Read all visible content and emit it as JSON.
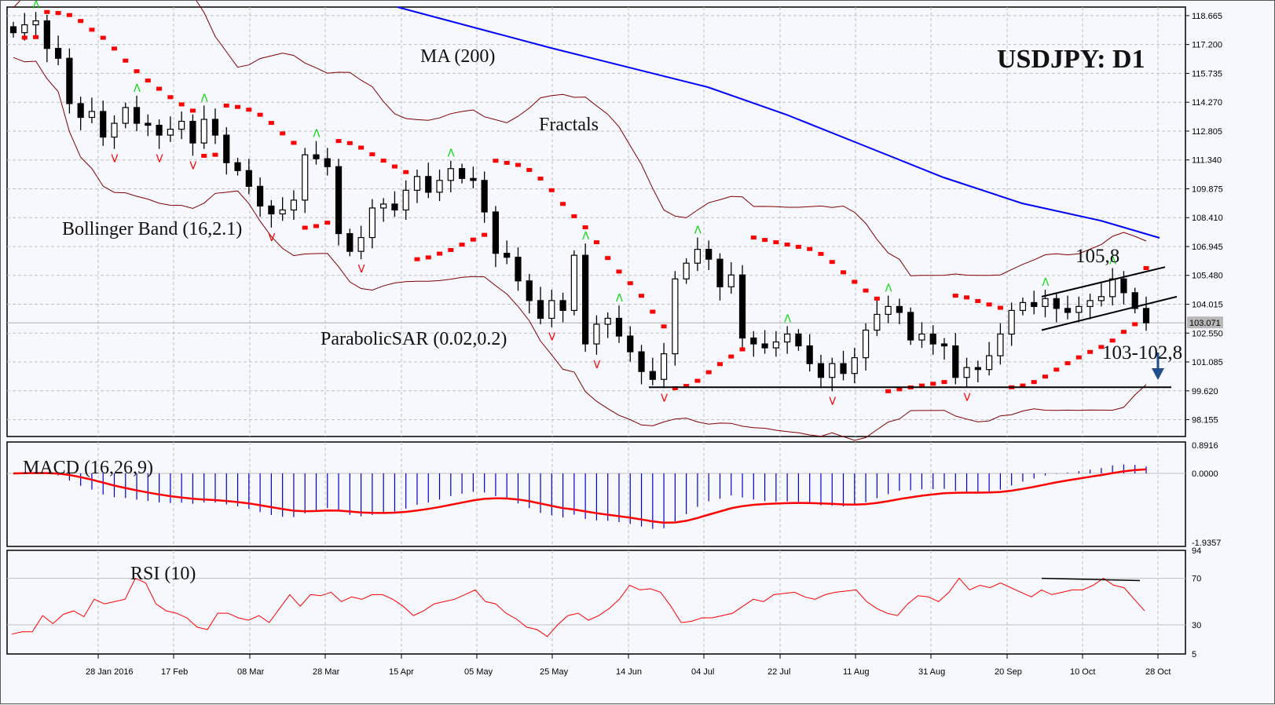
{
  "chart_data": [
    {
      "type": "candlestick",
      "title": "USDJPY: D1",
      "symbol": "USDJPY",
      "timeframe": "D1",
      "panel": "price",
      "y_ticks": [
        "118.665",
        "117.200",
        "115.735",
        "114.270",
        "112.805",
        "111.340",
        "109.875",
        "108.410",
        "106.945",
        "105.480",
        "104.015",
        "102.550",
        "101.085",
        "99.620",
        "98.155"
      ],
      "ylim": [
        97.3,
        119.1
      ],
      "current_price": "103.071",
      "x_ticks": [
        "28 Jan 2016",
        "17 Feb",
        "08 Mar",
        "28 Mar",
        "15 Apr",
        "05 May",
        "25 May",
        "14 Jun",
        "04 Jul",
        "22 Jul",
        "11 Aug",
        "31 Aug",
        "20 Sep",
        "10 Oct",
        "28 Oct"
      ],
      "grid": true,
      "annotations": [
        {
          "text": "MA (200)",
          "indicator": "Moving Average 200",
          "color": "#0000ff"
        },
        {
          "text": "Fractals",
          "indicator": "Fractals",
          "up_color": "#00dd00",
          "down_color": "#ff0000"
        },
        {
          "text": "Bollinger Band (16,2.1)",
          "indicator": "Bollinger Bands",
          "color": "#800000"
        },
        {
          "text": "ParabolicSAR (0.02,0.2)",
          "indicator": "Parabolic SAR",
          "color": "#ff0000"
        },
        {
          "text": "105,8",
          "type": "resistance label"
        },
        {
          "text": "103-102,8",
          "type": "support label"
        },
        {
          "text": "down-arrow",
          "type": "target arrow",
          "color": "#1f4e8c"
        }
      ],
      "support_line": 99.8,
      "channel": {
        "upper_start": 104.4,
        "upper_end": 105.9,
        "lower_start": 102.7,
        "lower_end": 104.4
      },
      "approx_close_series": [
        117.8,
        118.2,
        118.4,
        117.0,
        116.5,
        114.2,
        113.5,
        113.8,
        112.5,
        113.2,
        114.0,
        113.2,
        113.1,
        112.6,
        112.9,
        113.3,
        112.2,
        113.4,
        112.6,
        111.2,
        110.8,
        110.0,
        109.0,
        108.6,
        108.8,
        109.3,
        111.6,
        111.4,
        111.0,
        107.6,
        106.7,
        107.4,
        108.9,
        109.1,
        108.8,
        109.8,
        110.5,
        109.7,
        110.3,
        110.9,
        110.4,
        110.3,
        108.7,
        106.6,
        106.4,
        105.2,
        104.2,
        103.3,
        104.2,
        103.7,
        106.5,
        102.0,
        103.0,
        103.3,
        102.4,
        101.6,
        100.6,
        100.2,
        101.5,
        105.3,
        106.1,
        106.8,
        106.3,
        104.9,
        105.5,
        102.3,
        102.0,
        101.8,
        102.1,
        102.5,
        101.9,
        101.0,
        100.3,
        101.0,
        100.5,
        101.3,
        102.7,
        103.5,
        103.9,
        103.6,
        102.2,
        102.5,
        102.0,
        101.9,
        100.3,
        100.8,
        100.7,
        101.4,
        102.5,
        103.7,
        104.1,
        103.9,
        104.3,
        103.8,
        103.6,
        103.9,
        104.2,
        104.4,
        105.3,
        104.6,
        103.8,
        103.07
      ]
    },
    {
      "type": "bar+line",
      "title": "MACD (16,26,9)",
      "panel": "macd",
      "y_ticks": [
        "0.8916",
        "0.0000",
        "-1.9357"
      ],
      "ylim": [
        -1.9357,
        0.8916
      ],
      "series": [
        {
          "name": "MACD histogram",
          "color": "#0000cc"
        },
        {
          "name": "Signal",
          "color": "#ff0000"
        }
      ]
    },
    {
      "type": "line",
      "title": "RSI (10)",
      "panel": "rsi",
      "y_ticks": [
        "94",
        "70",
        "30",
        "5"
      ],
      "ylim": [
        5,
        94
      ],
      "levels": [
        70,
        30
      ],
      "series": [
        {
          "name": "RSI",
          "color": "#ff0000",
          "values": [
            22,
            24,
            24,
            38,
            31,
            39,
            42,
            37,
            52,
            48,
            50,
            52,
            70,
            66,
            48,
            42,
            40,
            36,
            28,
            26,
            40,
            40,
            36,
            34,
            38,
            32,
            44,
            56,
            46,
            56,
            55,
            58,
            50,
            54,
            52,
            56,
            56,
            52,
            46,
            38,
            42,
            48,
            50,
            52,
            56,
            60,
            50,
            48,
            40,
            35,
            28,
            26,
            20,
            30,
            38,
            40,
            34,
            38,
            44,
            52,
            64,
            60,
            61,
            58,
            46,
            32,
            33,
            36,
            36,
            38,
            40,
            46,
            52,
            50,
            56,
            57,
            58,
            54,
            52,
            56,
            58,
            59,
            60,
            50,
            44,
            40,
            38,
            48,
            55,
            54,
            50,
            58,
            70,
            60,
            64,
            62,
            66,
            62,
            58,
            54,
            60,
            56,
            58,
            60,
            60,
            64,
            70,
            64,
            62,
            52,
            42
          ]
        }
      ],
      "divergence_line": {
        "from": 70,
        "to": 68
      }
    }
  ],
  "header": {
    "title": "USDJPY: D1"
  },
  "labels": {
    "ma": "MA (200)",
    "fractals": "Fractals",
    "bollinger": "Bollinger Band (16,2.1)",
    "sar": "ParabolicSAR (0.02,0.2)",
    "resistance": "105,8",
    "support": "103-102,8",
    "macd": "MACD (16,26,9)",
    "rsi": "RSI (10)",
    "current_price": "103.071"
  },
  "colors": {
    "background": "#f6f8fd",
    "grid": "#c0c0c0",
    "ma": "#0000ff",
    "bollinger": "#800000",
    "sar": "#ff0000",
    "fractal_up": "#00dd00",
    "fractal_down": "#ff0000",
    "macd_hist": "#0000cc",
    "signal": "#ff0000",
    "rsi": "#ff0000",
    "arrow": "#1f4e8c"
  }
}
